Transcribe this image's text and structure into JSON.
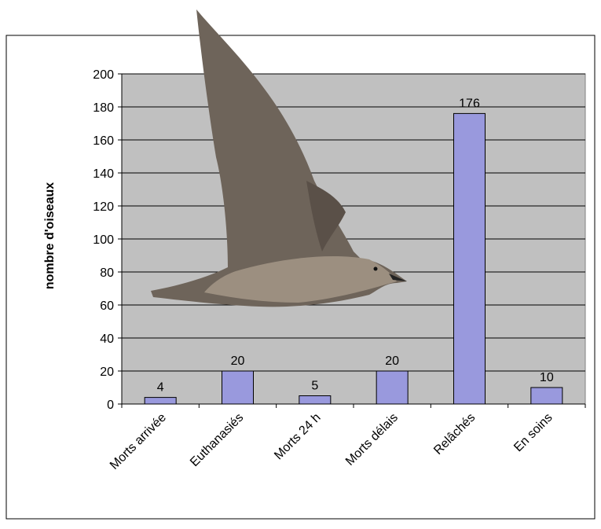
{
  "chart_data": {
    "type": "bar",
    "y_label": "nombre d'oiseaux",
    "categories": [
      "Morts arrivée",
      "Euthanasiés",
      "Morts 24 h",
      "Morts délais",
      "Relâchés",
      "En soins"
    ],
    "values": [
      4,
      20,
      5,
      20,
      176,
      10
    ],
    "color": "#9999dd",
    "ylim": [
      0,
      200
    ],
    "yticks": [
      0,
      20,
      40,
      60,
      80,
      100,
      120,
      140,
      160,
      180,
      200
    ],
    "grid": true
  }
}
